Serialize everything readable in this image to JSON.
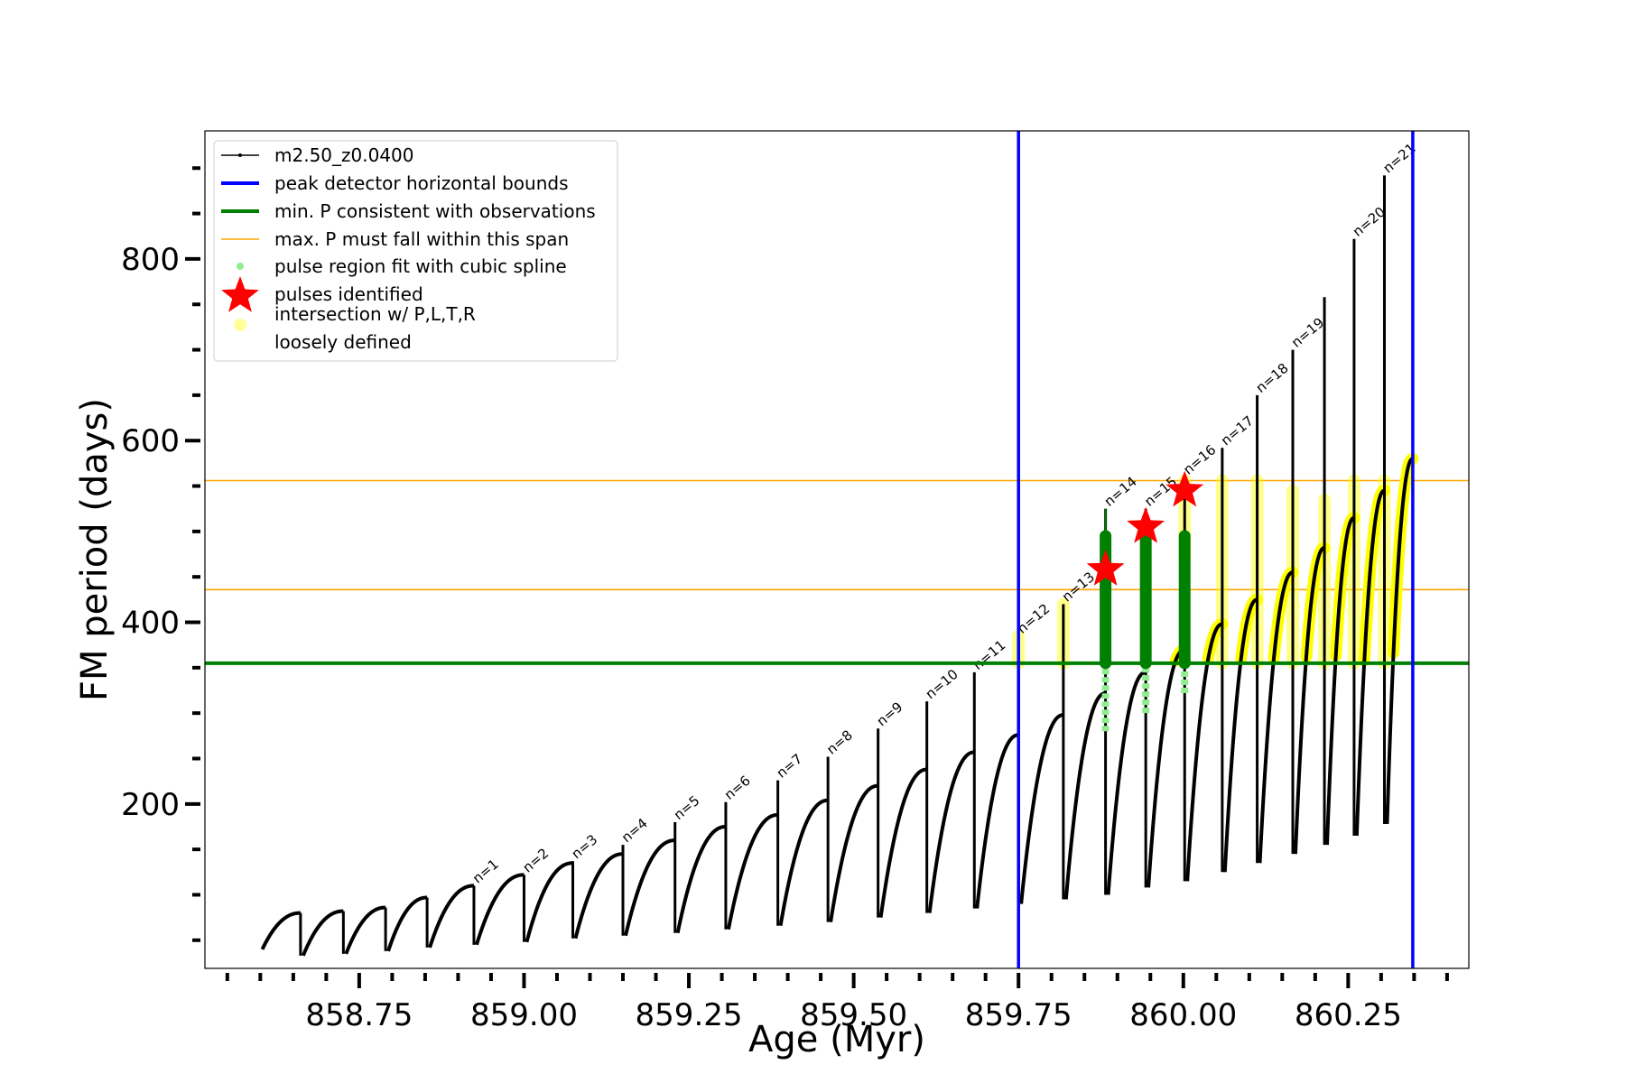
{
  "chart_data": {
    "type": "line",
    "xlabel": "Age (Myr)",
    "ylabel": "FM period (days)",
    "xlim": [
      858.516,
      860.433
    ],
    "ylim": [
      19,
      941
    ],
    "x_major_ticks": [
      858.75,
      859.0,
      859.25,
      859.5,
      859.75,
      860.0,
      860.25
    ],
    "x_tick_labels": [
      "858.75",
      "859.00",
      "859.25",
      "859.50",
      "859.75",
      "860.00",
      "860.25"
    ],
    "x_minor_step": 0.05,
    "y_major_ticks": [
      200,
      400,
      600,
      800
    ],
    "y_tick_labels": [
      "200",
      "400",
      "600",
      "800"
    ],
    "y_minor_step": 50,
    "grid": false,
    "legend_placement": "top-left",
    "legend": [
      {
        "label": "m2.50_z0.0400",
        "kind": "line-dot",
        "color": "#000000"
      },
      {
        "label": "peak detector horizontal bounds",
        "kind": "line",
        "color": "#0000ff"
      },
      {
        "label": "min. P consistent with observations",
        "kind": "line",
        "color": "#008000"
      },
      {
        "label": "max. P must fall within this span",
        "kind": "thin-line",
        "color": "#ffa500"
      },
      {
        "label": "pulse region fit with cubic spline",
        "kind": "dot",
        "color": "#90ee90"
      },
      {
        "label": "pulses identified",
        "kind": "star",
        "color": "#ff0000"
      },
      {
        "label": "intersection w/ P,L,T,R",
        "label2": "loosely defined",
        "kind": "dot",
        "color": "#ffff99"
      }
    ],
    "start": {
      "age": 858.603,
      "period": 40
    },
    "cycles": [
      {
        "age": 858.661,
        "max": 80,
        "spike": 80,
        "min": 33,
        "label": ""
      },
      {
        "age": 858.726,
        "max": 82,
        "spike": 82,
        "min": 35,
        "label": ""
      },
      {
        "age": 858.79,
        "max": 86,
        "spike": 86,
        "min": 38,
        "label": ""
      },
      {
        "age": 858.853,
        "max": 97,
        "spike": 97,
        "min": 42,
        "label": ""
      },
      {
        "age": 858.924,
        "max": 110,
        "spike": 110,
        "min": 45,
        "label": "n=1"
      },
      {
        "age": 859.0,
        "max": 122,
        "spike": 122,
        "min": 48,
        "label": "n=2"
      },
      {
        "age": 859.074,
        "max": 135,
        "spike": 137,
        "min": 52,
        "label": "n=3"
      },
      {
        "age": 859.15,
        "max": 145,
        "spike": 155,
        "min": 55,
        "label": "n=4"
      },
      {
        "age": 859.229,
        "max": 160,
        "spike": 180,
        "min": 58,
        "label": "n=5"
      },
      {
        "age": 859.306,
        "max": 175,
        "spike": 202,
        "min": 62,
        "label": "n=6"
      },
      {
        "age": 859.385,
        "max": 188,
        "spike": 226,
        "min": 66,
        "label": "n=7"
      },
      {
        "age": 859.461,
        "max": 204,
        "spike": 252,
        "min": 70,
        "label": "n=8"
      },
      {
        "age": 859.537,
        "max": 220,
        "spike": 283,
        "min": 75,
        "label": "n=9"
      },
      {
        "age": 859.611,
        "max": 238,
        "spike": 313,
        "min": 80,
        "label": "n=10"
      },
      {
        "age": 859.683,
        "max": 257,
        "spike": 345,
        "min": 85,
        "label": "n=11"
      },
      {
        "age": 859.75,
        "max": 276,
        "spike": 385,
        "min": 90,
        "label": "n=12"
      },
      {
        "age": 859.818,
        "max": 298,
        "spike": 420,
        "min": 95,
        "label": "n=13"
      },
      {
        "age": 859.882,
        "max": 322,
        "spike": 525,
        "min": 100,
        "label": "n=14"
      },
      {
        "age": 859.943,
        "max": 345,
        "spike": 525,
        "min": 108,
        "label": "n=15"
      },
      {
        "age": 860.002,
        "max": 370,
        "spike": 560,
        "min": 115,
        "label": "n=16"
      },
      {
        "age": 860.059,
        "max": 398,
        "spike": 592,
        "min": 125,
        "label": "n=17"
      },
      {
        "age": 860.112,
        "max": 425,
        "spike": 650,
        "min": 135,
        "label": "n=18"
      },
      {
        "age": 860.166,
        "max": 455,
        "spike": 700,
        "min": 145,
        "label": "n=19"
      },
      {
        "age": 860.214,
        "max": 482,
        "spike": 758,
        "min": 155,
        "label": ""
      },
      {
        "age": 860.259,
        "max": 515,
        "spike": 822,
        "min": 165,
        "label": "n=20"
      },
      {
        "age": 860.305,
        "max": 545,
        "spike": 892,
        "min": 178,
        "label": "n=21"
      }
    ],
    "end": {
      "age": 860.348,
      "period": 580
    },
    "vertical_bounds": [
      859.75,
      860.348
    ],
    "min_period_line": 355,
    "max_period_span": [
      436,
      556
    ],
    "pulses_identified": [
      {
        "age": 859.882,
        "period": 458
      },
      {
        "age": 859.943,
        "period": 505
      },
      {
        "age": 860.002,
        "period": 545
      }
    ],
    "pulse_regions": [
      {
        "age": 859.882,
        "from": 355,
        "to": 495,
        "spline_low": 280
      },
      {
        "age": 859.943,
        "from": 355,
        "to": 500,
        "spline_low": 300
      },
      {
        "age": 860.002,
        "from": 355,
        "to": 495,
        "spline_low": 322
      }
    ],
    "loose_regions": [
      {
        "age": 859.75,
        "from": 355,
        "to": 385
      },
      {
        "age": 859.818,
        "from": 355,
        "to": 420
      },
      {
        "age": 860.002,
        "from": 470,
        "to": 556
      },
      {
        "age": 860.059,
        "from": 355,
        "to": 556
      },
      {
        "age": 860.112,
        "from": 355,
        "to": 556
      },
      {
        "age": 860.166,
        "from": 355,
        "to": 545
      },
      {
        "age": 860.214,
        "from": 355,
        "to": 535
      },
      {
        "age": 860.259,
        "from": 355,
        "to": 556
      },
      {
        "age": 860.305,
        "from": 355,
        "to": 556
      }
    ],
    "intersection_start_age": 859.97
  },
  "colors": {
    "curve": "#000000",
    "bounds": "#0000ff",
    "minP": "#008000",
    "maxP": "#ffa500",
    "spline": "#90ee90",
    "star": "#ff0000",
    "loose": "#ffff00"
  }
}
